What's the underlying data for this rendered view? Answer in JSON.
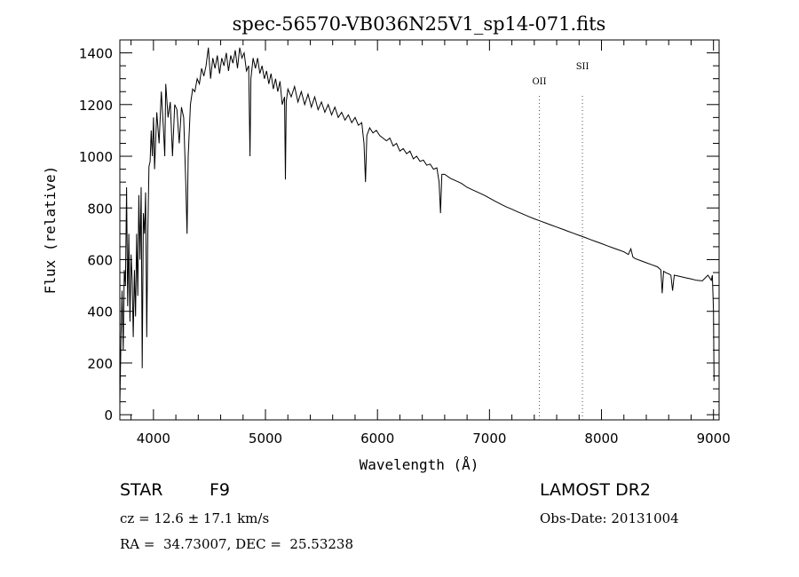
{
  "chart_data": {
    "type": "line",
    "title": "spec-56570-VB036N25V1_sp14-071.fits",
    "xlabel": "Wavelength (Å)",
    "ylabel": "Flux (relative)",
    "xlim": [
      3700,
      9050
    ],
    "ylim": [
      -20,
      1450
    ],
    "x_ticks": [
      4000,
      5000,
      6000,
      7000,
      8000,
      9000
    ],
    "x_tick_labels": [
      "4000",
      "5000",
      "6000",
      "7000",
      "8000",
      "9000"
    ],
    "y_ticks": [
      0,
      200,
      400,
      600,
      800,
      1000,
      1200,
      1400
    ],
    "y_tick_labels": [
      "0",
      "200",
      "400",
      "600",
      "800",
      "1000",
      "1200",
      "1400"
    ],
    "grid": false,
    "series": [
      {
        "name": "spectrum",
        "points": [
          [
            3700,
            40
          ],
          [
            3710,
            300
          ],
          [
            3720,
            480
          ],
          [
            3730,
            250
          ],
          [
            3740,
            560
          ],
          [
            3750,
            500
          ],
          [
            3760,
            880
          ],
          [
            3770,
            420
          ],
          [
            3780,
            700
          ],
          [
            3790,
            360
          ],
          [
            3800,
            620
          ],
          [
            3810,
            520
          ],
          [
            3820,
            300
          ],
          [
            3830,
            560
          ],
          [
            3840,
            380
          ],
          [
            3850,
            700
          ],
          [
            3860,
            460
          ],
          [
            3870,
            850
          ],
          [
            3880,
            600
          ],
          [
            3890,
            880
          ],
          [
            3900,
            180
          ],
          [
            3910,
            780
          ],
          [
            3920,
            700
          ],
          [
            3930,
            860
          ],
          [
            3940,
            300
          ],
          [
            3950,
            700
          ],
          [
            3960,
            960
          ],
          [
            3970,
            980
          ],
          [
            3980,
            1100
          ],
          [
            3990,
            1000
          ],
          [
            4000,
            1150
          ],
          [
            4010,
            950
          ],
          [
            4030,
            1170
          ],
          [
            4050,
            1050
          ],
          [
            4070,
            1250
          ],
          [
            4090,
            1100
          ],
          [
            4101,
            1000
          ],
          [
            4110,
            1280
          ],
          [
            4130,
            1150
          ],
          [
            4150,
            1210
          ],
          [
            4170,
            1000
          ],
          [
            4190,
            1200
          ],
          [
            4210,
            1180
          ],
          [
            4230,
            1050
          ],
          [
            4250,
            1190
          ],
          [
            4270,
            1150
          ],
          [
            4290,
            880
          ],
          [
            4300,
            700
          ],
          [
            4310,
            1000
          ],
          [
            4330,
            1200
          ],
          [
            4350,
            1260
          ],
          [
            4370,
            1250
          ],
          [
            4390,
            1300
          ],
          [
            4410,
            1280
          ],
          [
            4430,
            1340
          ],
          [
            4450,
            1310
          ],
          [
            4470,
            1350
          ],
          [
            4490,
            1420
          ],
          [
            4510,
            1300
          ],
          [
            4530,
            1380
          ],
          [
            4550,
            1340
          ],
          [
            4570,
            1390
          ],
          [
            4590,
            1320
          ],
          [
            4610,
            1380
          ],
          [
            4630,
            1350
          ],
          [
            4650,
            1400
          ],
          [
            4670,
            1330
          ],
          [
            4690,
            1390
          ],
          [
            4710,
            1360
          ],
          [
            4730,
            1410
          ],
          [
            4750,
            1340
          ],
          [
            4770,
            1420
          ],
          [
            4790,
            1380
          ],
          [
            4810,
            1400
          ],
          [
            4830,
            1330
          ],
          [
            4850,
            1350
          ],
          [
            4862,
            1000
          ],
          [
            4870,
            1300
          ],
          [
            4890,
            1380
          ],
          [
            4910,
            1340
          ],
          [
            4930,
            1380
          ],
          [
            4950,
            1320
          ],
          [
            4970,
            1350
          ],
          [
            4990,
            1300
          ],
          [
            5010,
            1330
          ],
          [
            5030,
            1280
          ],
          [
            5050,
            1320
          ],
          [
            5070,
            1260
          ],
          [
            5090,
            1300
          ],
          [
            5110,
            1250
          ],
          [
            5130,
            1290
          ],
          [
            5150,
            1200
          ],
          [
            5170,
            1230
          ],
          [
            5178,
            910
          ],
          [
            5185,
            1210
          ],
          [
            5200,
            1260
          ],
          [
            5230,
            1230
          ],
          [
            5260,
            1270
          ],
          [
            5290,
            1210
          ],
          [
            5320,
            1250
          ],
          [
            5350,
            1200
          ],
          [
            5380,
            1240
          ],
          [
            5410,
            1190
          ],
          [
            5440,
            1230
          ],
          [
            5470,
            1180
          ],
          [
            5500,
            1210
          ],
          [
            5530,
            1170
          ],
          [
            5560,
            1200
          ],
          [
            5590,
            1160
          ],
          [
            5620,
            1190
          ],
          [
            5650,
            1150
          ],
          [
            5680,
            1170
          ],
          [
            5710,
            1140
          ],
          [
            5740,
            1160
          ],
          [
            5770,
            1130
          ],
          [
            5800,
            1150
          ],
          [
            5830,
            1120
          ],
          [
            5860,
            1130
          ],
          [
            5880,
            1050
          ],
          [
            5893,
            900
          ],
          [
            5905,
            1080
          ],
          [
            5930,
            1110
          ],
          [
            5960,
            1090
          ],
          [
            5990,
            1100
          ],
          [
            6020,
            1080
          ],
          [
            6050,
            1070
          ],
          [
            6080,
            1060
          ],
          [
            6110,
            1070
          ],
          [
            6140,
            1040
          ],
          [
            6170,
            1050
          ],
          [
            6200,
            1020
          ],
          [
            6230,
            1030
          ],
          [
            6260,
            1010
          ],
          [
            6290,
            1020
          ],
          [
            6320,
            990
          ],
          [
            6350,
            1000
          ],
          [
            6380,
            980
          ],
          [
            6410,
            985
          ],
          [
            6440,
            965
          ],
          [
            6470,
            970
          ],
          [
            6500,
            950
          ],
          [
            6530,
            955
          ],
          [
            6550,
            900
          ],
          [
            6563,
            780
          ],
          [
            6575,
            930
          ],
          [
            6600,
            930
          ],
          [
            6650,
            915
          ],
          [
            6700,
            905
          ],
          [
            6750,
            895
          ],
          [
            6800,
            880
          ],
          [
            6850,
            870
          ],
          [
            6900,
            860
          ],
          [
            6950,
            850
          ],
          [
            7000,
            838
          ],
          [
            7050,
            826
          ],
          [
            7100,
            815
          ],
          [
            7150,
            804
          ],
          [
            7200,
            795
          ],
          [
            7250,
            785
          ],
          [
            7300,
            776
          ],
          [
            7350,
            767
          ],
          [
            7400,
            758
          ],
          [
            7450,
            750
          ],
          [
            7500,
            742
          ],
          [
            7550,
            734
          ],
          [
            7600,
            726
          ],
          [
            7650,
            718
          ],
          [
            7700,
            710
          ],
          [
            7750,
            702
          ],
          [
            7800,
            694
          ],
          [
            7850,
            686
          ],
          [
            7900,
            678
          ],
          [
            7950,
            670
          ],
          [
            8000,
            662
          ],
          [
            8050,
            654
          ],
          [
            8100,
            646
          ],
          [
            8150,
            638
          ],
          [
            8200,
            630
          ],
          [
            8240,
            620
          ],
          [
            8262,
            642
          ],
          [
            8280,
            610
          ],
          [
            8300,
            604
          ],
          [
            8350,
            596
          ],
          [
            8400,
            588
          ],
          [
            8450,
            580
          ],
          [
            8500,
            572
          ],
          [
            8530,
            560
          ],
          [
            8542,
            470
          ],
          [
            8555,
            555
          ],
          [
            8580,
            548
          ],
          [
            8600,
            545
          ],
          [
            8620,
            540
          ],
          [
            8635,
            480
          ],
          [
            8650,
            540
          ],
          [
            8700,
            535
          ],
          [
            8750,
            530
          ],
          [
            8800,
            525
          ],
          [
            8850,
            520
          ],
          [
            8900,
            518
          ],
          [
            8950,
            540
          ],
          [
            8980,
            520
          ],
          [
            8990,
            540
          ],
          [
            9000,
            400
          ],
          [
            9005,
            130
          ]
        ]
      }
    ],
    "annotations": [
      {
        "label": "OII",
        "x": 7445,
        "style": "dotted"
      },
      {
        "label": "SII",
        "x": 7830,
        "style": "dotted"
      }
    ]
  },
  "info": {
    "object_class": "STAR",
    "subclass": "F9",
    "redshift": "cz = 12.6 ± 17.1 km/s",
    "coordinates": "RA =  34.73007, DEC =  25.53238",
    "survey": "LAMOST DR2",
    "obs_date": "Obs-Date: 20131004"
  }
}
